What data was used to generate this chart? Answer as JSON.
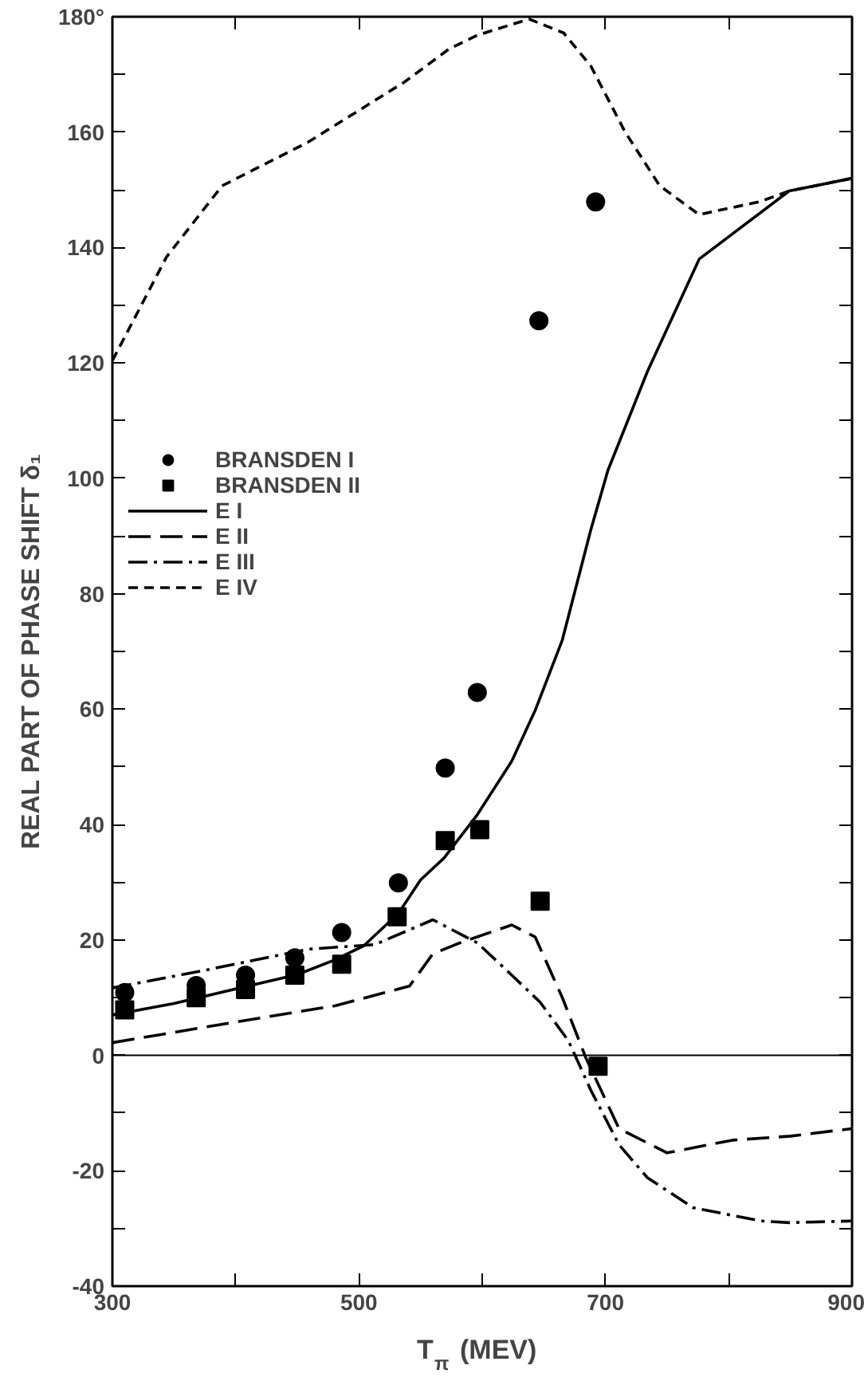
{
  "chart_data": {
    "type": "line",
    "xlabel": "T$_{π}$ (MEV)",
    "ylabel": "REAL PART OF PHASE SHIFT δ₁",
    "xlim": [
      300,
      900
    ],
    "ylim": [
      -40,
      180
    ],
    "xticks": [
      300,
      {
        "value": 400,
        "label": null
      },
      500,
      {
        "value": 600,
        "label": null
      },
      700,
      {
        "value": 800,
        "label": null
      },
      900
    ],
    "yticks": [
      -40,
      {
        "value": -30,
        "label": null
      },
      -20,
      {
        "value": -10,
        "label": null
      },
      0,
      {
        "value": 10,
        "label": null
      },
      20,
      {
        "value": 30,
        "label": null
      },
      40,
      {
        "value": 50,
        "label": null
      },
      60,
      {
        "value": 70,
        "label": null
      },
      80,
      {
        "value": 90,
        "label": null
      },
      100,
      {
        "value": 110,
        "label": null
      },
      120,
      {
        "value": 130,
        "label": null
      },
      140,
      {
        "value": 150,
        "label": null
      },
      160,
      {
        "value": 170,
        "label": null
      },
      {
        "value": 180,
        "label": "180°"
      }
    ],
    "grid": false,
    "legend": "top left",
    "ref_lines": [
      {
        "axis": "y",
        "value": 0,
        "color": "#000000"
      }
    ],
    "series": [
      {
        "name": "BRANSDEN I",
        "type": "scatter",
        "marker": "circle",
        "color": "#000000",
        "x": [
          310,
          368,
          408,
          448,
          486,
          532,
          570,
          596,
          646,
          692
        ],
        "values": [
          10.9,
          12.1,
          13.9,
          16.9,
          21.3,
          29.9,
          49.8,
          62.9,
          127.3,
          147.9
        ]
      },
      {
        "name": "BRANSDEN II",
        "type": "scatter",
        "marker": "square",
        "color": "#000000",
        "x": [
          310,
          368,
          408,
          448,
          486,
          531,
          570,
          598,
          647,
          694
        ],
        "values": [
          7.9,
          10,
          11.4,
          13.9,
          15.8,
          24,
          37.2,
          39.1,
          26.7,
          -1.9
        ]
      },
      {
        "name": "E I",
        "line_style": "solid",
        "color": "#000000",
        "x": [
          300,
          350,
          400,
          450,
          480,
          504,
          532,
          550,
          569,
          596,
          624,
          643,
          665,
          688,
          702,
          734,
          776,
          849,
          900
        ],
        "values": [
          7,
          9,
          11.5,
          14,
          16.5,
          19,
          24.6,
          30.4,
          34.2,
          41.7,
          51,
          59.8,
          72,
          91,
          101.4,
          118.5,
          138,
          149.8,
          152
        ]
      },
      {
        "name": "E II",
        "line_style": "longdash",
        "color": "#000000",
        "x": [
          300,
          412,
          481,
          541,
          560,
          582,
          624,
          643,
          665,
          684,
          711,
          750,
          803,
          850,
          900
        ],
        "values": [
          2.2,
          6.2,
          8.6,
          12,
          17.6,
          19.5,
          22.6,
          20.5,
          10,
          -0.4,
          -12.7,
          -16.9,
          -14.7,
          -14,
          -12.7
        ]
      },
      {
        "name": "E III",
        "line_style": "dashdot",
        "color": "#000000",
        "x": [
          300,
          367,
          459,
          513,
          560,
          596,
          624,
          647,
          670,
          688,
          711,
          734,
          771,
          826,
          849,
          900
        ],
        "values": [
          11.7,
          14.4,
          18.4,
          19.2,
          23.5,
          19.5,
          13.9,
          9.2,
          2.5,
          -6,
          -15.5,
          -21.2,
          -26.4,
          -28.7,
          -29,
          -28.7
        ]
      },
      {
        "name": "E IV",
        "line_style": "dashed",
        "color": "#000000",
        "x": [
          300,
          344,
          389,
          459,
          537,
          573,
          596,
          638,
          666,
          688,
          716,
          744,
          776,
          826,
          849,
          900
        ],
        "values": [
          120.4,
          138.4,
          150.7,
          158.3,
          168.7,
          174.4,
          176.8,
          179.6,
          177.2,
          171.5,
          160,
          150.7,
          145.7,
          148,
          149.8,
          152
        ]
      }
    ]
  }
}
